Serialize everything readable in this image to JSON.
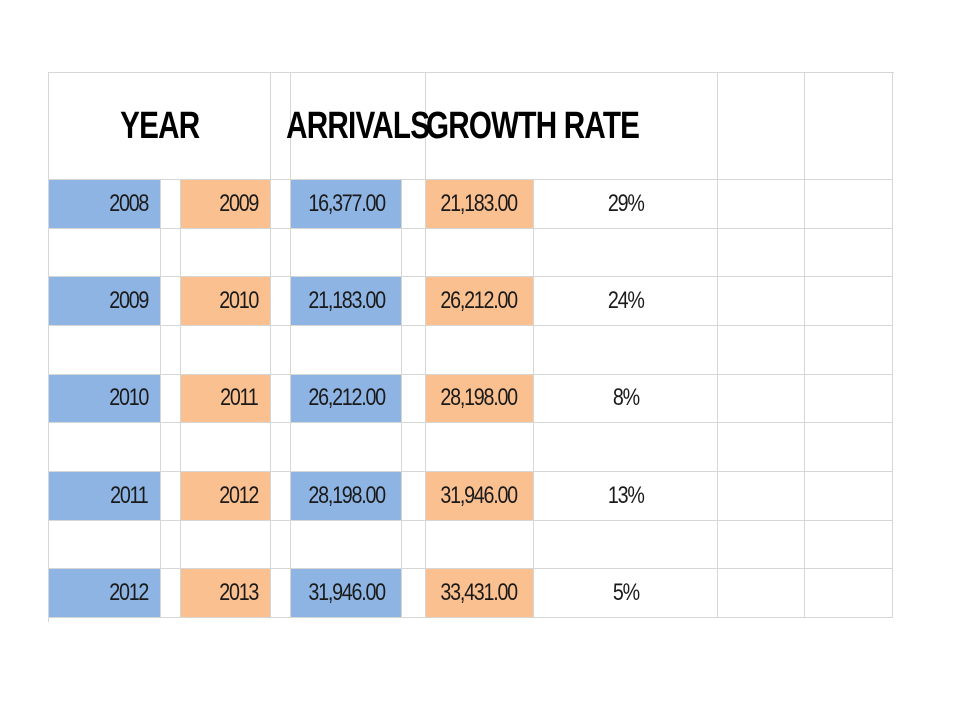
{
  "headers": {
    "year": "YEAR",
    "arrivals": "ARRIVALS",
    "growth_rate": "GROWTH RATE"
  },
  "rows": [
    {
      "year_from": "2008",
      "year_to": "2009",
      "arrivals_from": "16,377.00",
      "arrivals_to": "21,183.00",
      "growth": "29%"
    },
    {
      "year_from": "2009",
      "year_to": "2010",
      "arrivals_from": "21,183.00",
      "arrivals_to": "26,212.00",
      "growth": "24%"
    },
    {
      "year_from": "2010",
      "year_to": "2011",
      "arrivals_from": "26,212.00",
      "arrivals_to": "28,198.00",
      "growth": "8%"
    },
    {
      "year_from": "2011",
      "year_to": "2012",
      "arrivals_from": "28,198.00",
      "arrivals_to": "31,946.00",
      "growth": "13%"
    },
    {
      "year_from": "2012",
      "year_to": "2013",
      "arrivals_from": "31,946.00",
      "arrivals_to": "33,431.00",
      "growth": "5%"
    }
  ],
  "colors": {
    "from_fill": "#8eb4e3",
    "to_fill": "#fac090",
    "gridline": "#d6d6d6"
  }
}
